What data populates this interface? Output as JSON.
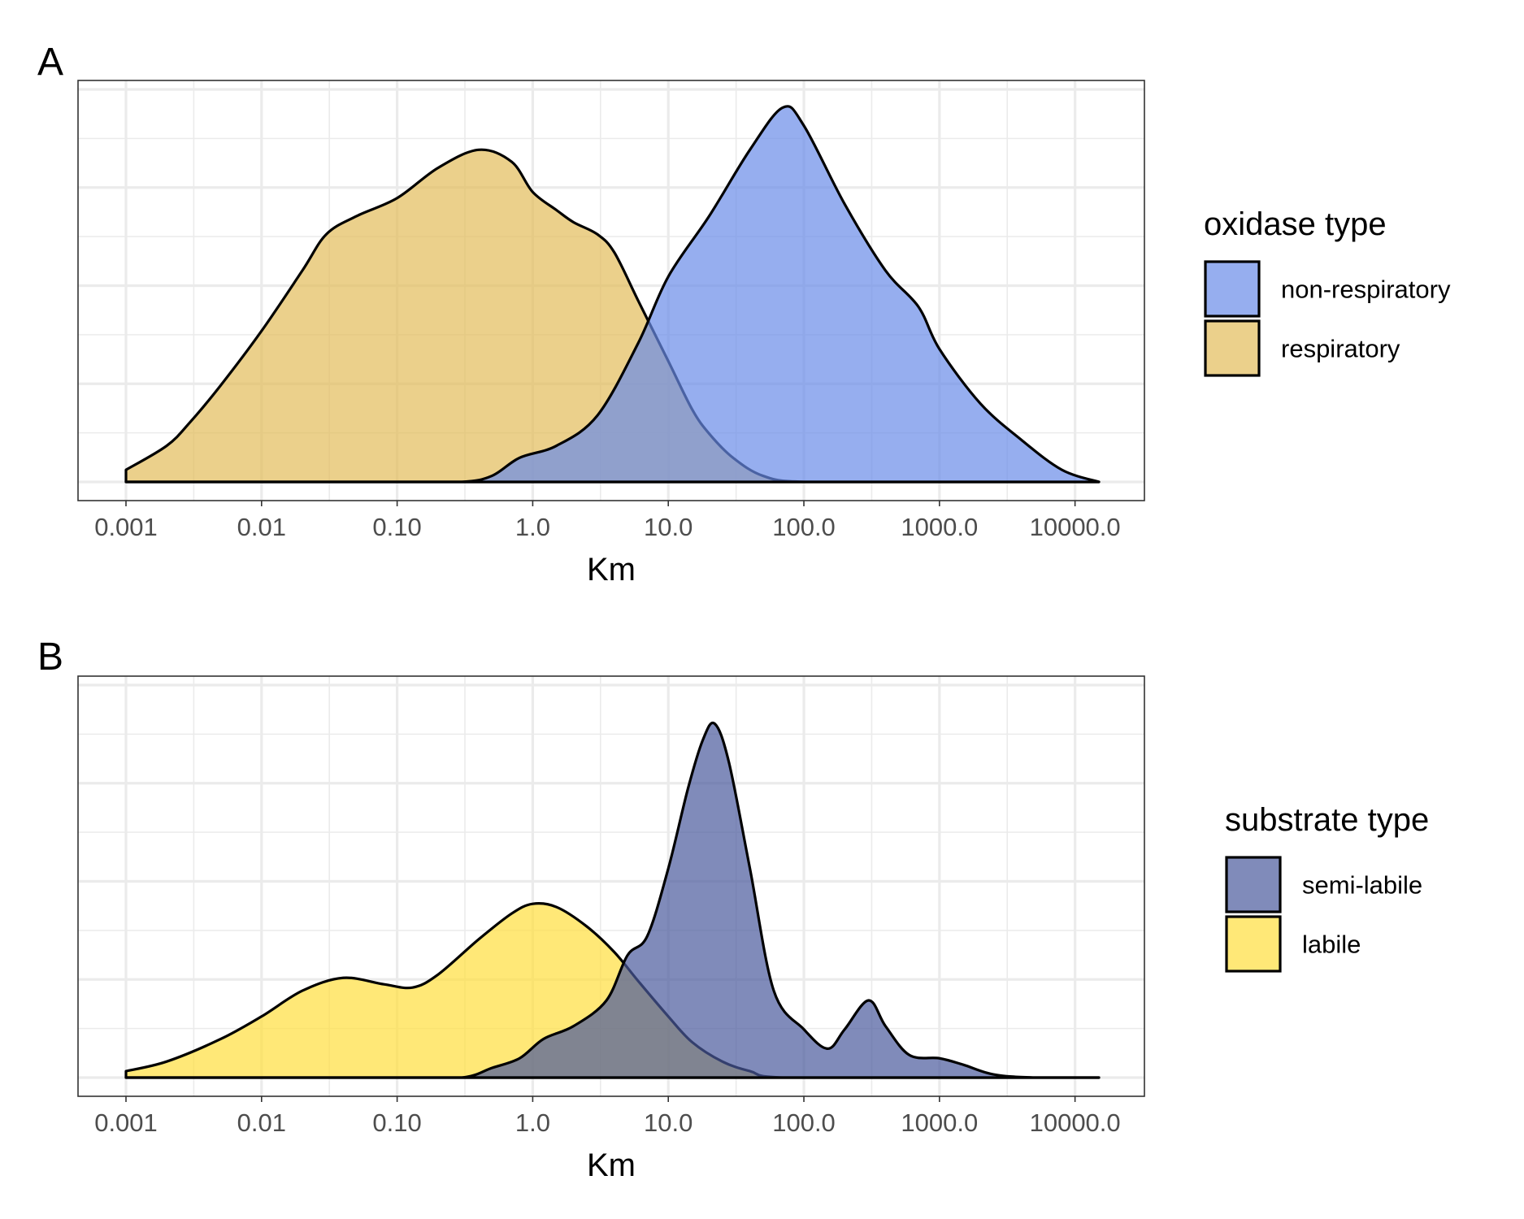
{
  "chart_data": [
    {
      "type": "area",
      "panel_tag": "A",
      "xlabel": "Km",
      "ylabel": "",
      "x_scale": "log10",
      "xlim": [
        0.001,
        15000
      ],
      "x_ticks": [
        0.001,
        0.01,
        0.1,
        1,
        10,
        100,
        1000,
        10000
      ],
      "x_tick_labels": [
        "0.001",
        "0.01",
        "0.10",
        "1.0",
        "10.0",
        "100.0",
        "1000.0",
        "10000.0"
      ],
      "y_tick_labels_shown": false,
      "grid": true,
      "legend": {
        "title": "oxidase type",
        "position": "right",
        "items": [
          "non-respiratory",
          "respiratory"
        ]
      },
      "series": [
        {
          "name": "respiratory",
          "color": "#e2bc5a",
          "points": [
            [
              0.001,
              0.02
            ],
            [
              0.002,
              0.06
            ],
            [
              0.003,
              0.1
            ],
            [
              0.005,
              0.16
            ],
            [
              0.01,
              0.25
            ],
            [
              0.02,
              0.35
            ],
            [
              0.03,
              0.41
            ],
            [
              0.05,
              0.44
            ],
            [
              0.1,
              0.47
            ],
            [
              0.2,
              0.52
            ],
            [
              0.4,
              0.55
            ],
            [
              0.7,
              0.53
            ],
            [
              1.0,
              0.48
            ],
            [
              1.5,
              0.45
            ],
            [
              2.0,
              0.43
            ],
            [
              3.0,
              0.41
            ],
            [
              4.0,
              0.38
            ],
            [
              6.0,
              0.3
            ],
            [
              10.0,
              0.2
            ],
            [
              15.0,
              0.12
            ],
            [
              20.0,
              0.08
            ],
            [
              30.0,
              0.04
            ],
            [
              50.0,
              0.01
            ],
            [
              100.0,
              0.0
            ],
            [
              1000.0,
              0.0
            ],
            [
              15000.0,
              0.0
            ]
          ]
        },
        {
          "name": "non-respiratory",
          "color": "#6a8ce8",
          "points": [
            [
              0.001,
              0.0
            ],
            [
              0.1,
              0.0
            ],
            [
              0.3,
              0.0
            ],
            [
              0.5,
              0.01
            ],
            [
              0.8,
              0.04
            ],
            [
              1.5,
              0.06
            ],
            [
              3.0,
              0.11
            ],
            [
              6.0,
              0.23
            ],
            [
              10.0,
              0.34
            ],
            [
              20.0,
              0.44
            ],
            [
              40.0,
              0.55
            ],
            [
              70.0,
              0.62
            ],
            [
              100.0,
              0.59
            ],
            [
              200.0,
              0.46
            ],
            [
              400.0,
              0.35
            ],
            [
              700.0,
              0.29
            ],
            [
              1000.0,
              0.22
            ],
            [
              2000.0,
              0.13
            ],
            [
              4000.0,
              0.07
            ],
            [
              8000.0,
              0.02
            ],
            [
              15000.0,
              0.0
            ]
          ]
        }
      ]
    },
    {
      "type": "area",
      "panel_tag": "B",
      "xlabel": "Km",
      "ylabel": "",
      "x_scale": "log10",
      "xlim": [
        0.001,
        15000
      ],
      "x_ticks": [
        0.001,
        0.01,
        0.1,
        1,
        10,
        100,
        1000,
        10000
      ],
      "x_tick_labels": [
        "0.001",
        "0.01",
        "0.10",
        "1.0",
        "10.0",
        "100.0",
        "1000.0",
        "10000.0"
      ],
      "y_tick_labels_shown": false,
      "grid": true,
      "legend": {
        "title": "substrate type",
        "position": "right",
        "items": [
          "semi-labile",
          "labile"
        ]
      },
      "series": [
        {
          "name": "labile",
          "color": "#ffde3d",
          "points": [
            [
              0.001,
              0.02
            ],
            [
              0.002,
              0.05
            ],
            [
              0.005,
              0.12
            ],
            [
              0.01,
              0.19
            ],
            [
              0.02,
              0.27
            ],
            [
              0.04,
              0.31
            ],
            [
              0.08,
              0.29
            ],
            [
              0.13,
              0.28
            ],
            [
              0.2,
              0.32
            ],
            [
              0.4,
              0.43
            ],
            [
              0.7,
              0.51
            ],
            [
              1.0,
              0.54
            ],
            [
              1.5,
              0.53
            ],
            [
              2.5,
              0.47
            ],
            [
              4.0,
              0.39
            ],
            [
              6.0,
              0.3
            ],
            [
              10.0,
              0.19
            ],
            [
              15.0,
              0.11
            ],
            [
              25.0,
              0.05
            ],
            [
              40.0,
              0.02
            ],
            [
              70.0,
              0.0
            ],
            [
              1000.0,
              0.0
            ],
            [
              15000.0,
              0.0
            ]
          ]
        },
        {
          "name": "semi-labile",
          "color": "#4a5a9c",
          "points": [
            [
              0.001,
              0.0
            ],
            [
              0.1,
              0.0
            ],
            [
              0.3,
              0.0
            ],
            [
              0.5,
              0.03
            ],
            [
              0.8,
              0.06
            ],
            [
              1.2,
              0.12
            ],
            [
              2.0,
              0.16
            ],
            [
              3.5,
              0.24
            ],
            [
              5.0,
              0.38
            ],
            [
              7.0,
              0.44
            ],
            [
              10.0,
              0.65
            ],
            [
              14.0,
              0.9
            ],
            [
              18.0,
              1.05
            ],
            [
              22.0,
              1.1
            ],
            [
              28.0,
              0.98
            ],
            [
              40.0,
              0.65
            ],
            [
              60.0,
              0.27
            ],
            [
              100.0,
              0.15
            ],
            [
              150.0,
              0.09
            ],
            [
              200.0,
              0.15
            ],
            [
              300.0,
              0.24
            ],
            [
              400.0,
              0.16
            ],
            [
              600.0,
              0.07
            ],
            [
              1000.0,
              0.06
            ],
            [
              1500.0,
              0.04
            ],
            [
              2500.0,
              0.01
            ],
            [
              5000.0,
              0.0
            ],
            [
              15000.0,
              0.0
            ]
          ]
        }
      ]
    }
  ]
}
